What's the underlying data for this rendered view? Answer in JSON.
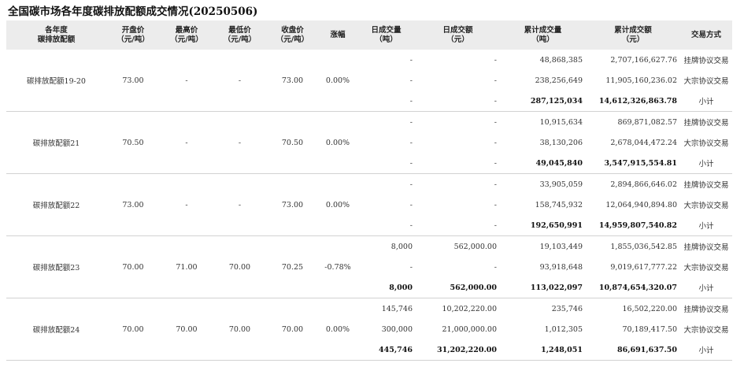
{
  "title": "全国碳市场各年度碳排放配额成交情况(20250506)",
  "headers": [
    "各年度\n碳排放配额",
    "开盘价\n（元/吨）",
    "最高价\n（元/吨）",
    "最低价\n（元/吨）",
    "收盘价\n（元/吨）",
    "涨幅",
    "日成交量\n（吨）",
    "日成交额\n（元）",
    "累计成交量\n（吨）",
    "累计成交额\n（元）",
    "交易方式"
  ],
  "groups": [
    {
      "name": "碳排放配额19-20",
      "open": "73.00",
      "high": "-",
      "low": "-",
      "close": "73.00",
      "change": "0.00%",
      "rows": [
        {
          "vol": "-",
          "amt": "-",
          "cum_vol": "48,868,385",
          "cum_amt": "2,707,166,627.76",
          "method": "挂牌协议交易"
        },
        {
          "vol": "-",
          "amt": "-",
          "cum_vol": "238,256,649",
          "cum_amt": "11,905,160,236.02",
          "method": "大宗协议交易"
        },
        {
          "vol": "-",
          "amt": "-",
          "cum_vol": "287,125,034",
          "cum_amt": "14,612,326,863.78",
          "method": "小计"
        }
      ]
    },
    {
      "name": "碳排放配额21",
      "open": "70.50",
      "high": "-",
      "low": "-",
      "close": "70.50",
      "change": "0.00%",
      "rows": [
        {
          "vol": "-",
          "amt": "-",
          "cum_vol": "10,915,634",
          "cum_amt": "869,871,082.57",
          "method": "挂牌协议交易"
        },
        {
          "vol": "-",
          "amt": "-",
          "cum_vol": "38,130,206",
          "cum_amt": "2,678,044,472.24",
          "method": "大宗协议交易"
        },
        {
          "vol": "-",
          "amt": "-",
          "cum_vol": "49,045,840",
          "cum_amt": "3,547,915,554.81",
          "method": "小计"
        }
      ]
    },
    {
      "name": "碳排放配额22",
      "open": "73.00",
      "high": "-",
      "low": "-",
      "close": "73.00",
      "change": "0.00%",
      "rows": [
        {
          "vol": "-",
          "amt": "-",
          "cum_vol": "33,905,059",
          "cum_amt": "2,894,866,646.02",
          "method": "挂牌协议交易"
        },
        {
          "vol": "-",
          "amt": "-",
          "cum_vol": "158,745,932",
          "cum_amt": "12,064,940,894.80",
          "method": "大宗协议交易"
        },
        {
          "vol": "-",
          "amt": "-",
          "cum_vol": "192,650,991",
          "cum_amt": "14,959,807,540.82",
          "method": "小计"
        }
      ]
    },
    {
      "name": "碳排放配额23",
      "open": "70.00",
      "high": "71.00",
      "low": "70.00",
      "close": "70.25",
      "change": "-0.78%",
      "rows": [
        {
          "vol": "8,000",
          "amt": "562,000.00",
          "cum_vol": "19,103,449",
          "cum_amt": "1,855,036,542.85",
          "method": "挂牌协议交易"
        },
        {
          "vol": "-",
          "amt": "-",
          "cum_vol": "93,918,648",
          "cum_amt": "9,019,617,777.22",
          "method": "大宗协议交易"
        },
        {
          "vol": "8,000",
          "amt": "562,000.00",
          "cum_vol": "113,022,097",
          "cum_amt": "10,874,654,320.07",
          "method": "小计"
        }
      ]
    },
    {
      "name": "碳排放配额24",
      "open": "70.00",
      "high": "70.00",
      "low": "70.00",
      "close": "70.00",
      "change": "0.00%",
      "rows": [
        {
          "vol": "145,746",
          "amt": "10,202,220.00",
          "cum_vol": "235,746",
          "cum_amt": "16,502,220.00",
          "method": "挂牌协议交易"
        },
        {
          "vol": "300,000",
          "amt": "21,000,000.00",
          "cum_vol": "1,012,305",
          "cum_amt": "70,189,417.50",
          "method": "大宗协议交易"
        },
        {
          "vol": "445,746",
          "amt": "31,202,220.00",
          "cum_vol": "1,248,051",
          "cum_amt": "86,691,637.50",
          "method": "小计"
        }
      ]
    }
  ]
}
